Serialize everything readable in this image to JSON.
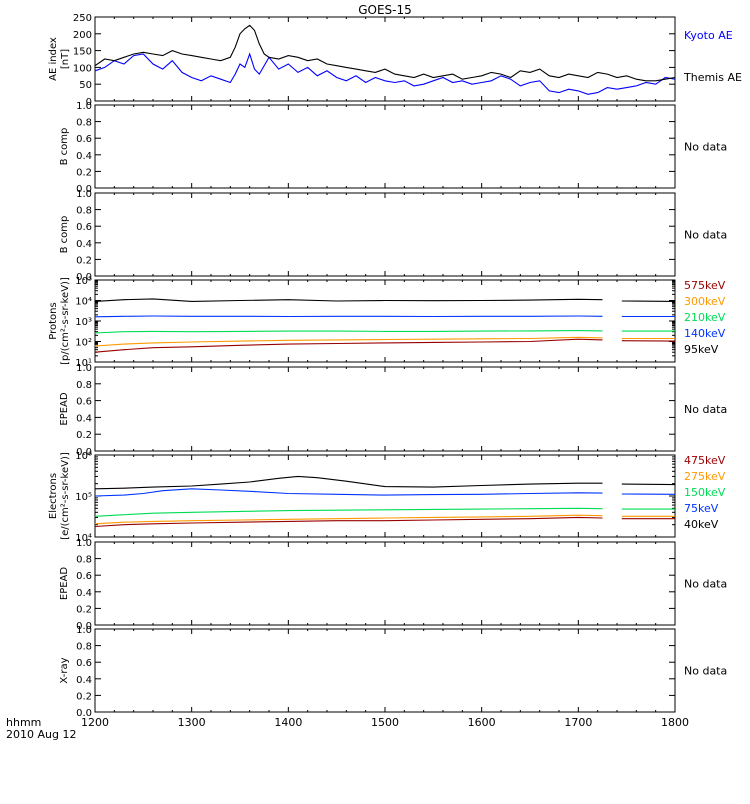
{
  "title": "GOES-15",
  "footer": {
    "line1": "hhmm",
    "line2": "2010 Aug 12"
  },
  "x_axis": {
    "ticks": [
      1200,
      1300,
      1400,
      1500,
      1600,
      1700,
      1800
    ],
    "range": [
      1200,
      1800
    ]
  },
  "no_data_text": "No data",
  "chart_data": [
    {
      "id": "ae",
      "type": "line",
      "ylabel": [
        "AE index",
        "[nT]"
      ],
      "ylim": [
        0,
        250
      ],
      "yticks": [
        0,
        50,
        100,
        150,
        200,
        250
      ],
      "series": [
        {
          "name": "Kyoto AE",
          "color": "#0000ff",
          "x": [
            1200,
            1210,
            1220,
            1230,
            1240,
            1250,
            1260,
            1270,
            1280,
            1290,
            1300,
            1310,
            1320,
            1330,
            1340,
            1345,
            1350,
            1355,
            1360,
            1365,
            1370,
            1380,
            1390,
            1400,
            1410,
            1420,
            1430,
            1440,
            1450,
            1460,
            1470,
            1480,
            1490,
            1500,
            1510,
            1520,
            1530,
            1540,
            1550,
            1560,
            1570,
            1580,
            1590,
            1600,
            1610,
            1620,
            1630,
            1640,
            1650,
            1660,
            1670,
            1680,
            1690,
            1700,
            1710,
            1720,
            1730,
            1740,
            1750,
            1760,
            1770,
            1780,
            1790,
            1800
          ],
          "y": [
            90,
            100,
            120,
            110,
            135,
            140,
            110,
            95,
            120,
            85,
            70,
            60,
            75,
            65,
            55,
            80,
            110,
            100,
            140,
            95,
            80,
            130,
            95,
            110,
            85,
            100,
            75,
            90,
            70,
            60,
            75,
            55,
            70,
            60,
            55,
            60,
            45,
            50,
            60,
            70,
            55,
            60,
            50,
            55,
            60,
            75,
            65,
            45,
            55,
            60,
            30,
            25,
            35,
            30,
            20,
            25,
            40,
            35,
            40,
            45,
            55,
            50,
            70,
            65
          ]
        },
        {
          "name": "Themis AE",
          "color": "#000000",
          "x": [
            1200,
            1210,
            1220,
            1230,
            1240,
            1250,
            1260,
            1270,
            1280,
            1290,
            1300,
            1310,
            1320,
            1330,
            1340,
            1345,
            1350,
            1355,
            1360,
            1365,
            1370,
            1375,
            1380,
            1390,
            1400,
            1410,
            1420,
            1430,
            1440,
            1450,
            1460,
            1470,
            1480,
            1490,
            1500,
            1510,
            1520,
            1530,
            1540,
            1550,
            1560,
            1570,
            1580,
            1590,
            1600,
            1610,
            1620,
            1630,
            1640,
            1650,
            1660,
            1670,
            1680,
            1690,
            1700,
            1710,
            1720,
            1730,
            1740,
            1750,
            1760,
            1770,
            1780,
            1790,
            1800
          ],
          "y": [
            105,
            125,
            120,
            130,
            140,
            145,
            140,
            135,
            150,
            140,
            135,
            130,
            125,
            120,
            130,
            160,
            200,
            215,
            225,
            210,
            170,
            140,
            130,
            125,
            135,
            130,
            120,
            125,
            110,
            105,
            100,
            95,
            90,
            85,
            95,
            80,
            75,
            70,
            80,
            70,
            75,
            80,
            65,
            70,
            75,
            85,
            80,
            70,
            90,
            85,
            95,
            75,
            70,
            80,
            75,
            70,
            85,
            80,
            70,
            75,
            65,
            60,
            60,
            65,
            70
          ]
        }
      ]
    },
    {
      "id": "bcomp1",
      "type": "line",
      "ylabel": [
        "B comp"
      ],
      "ylim": [
        0,
        1
      ],
      "yticks": [
        0.0,
        0.2,
        0.4,
        0.6,
        0.8,
        1.0
      ],
      "yticklabels": [
        "0.0",
        "0.2",
        "0.4",
        "0.6",
        "0.8",
        "1.0"
      ],
      "series": []
    },
    {
      "id": "bcomp2",
      "type": "line",
      "ylabel": [
        "B comp"
      ],
      "ylim": [
        0,
        1
      ],
      "yticks": [
        0.0,
        0.2,
        0.4,
        0.6,
        0.8,
        1.0
      ],
      "yticklabels": [
        "0.0",
        "0.2",
        "0.4",
        "0.6",
        "0.8",
        "1.0"
      ],
      "series": []
    },
    {
      "id": "protons",
      "type": "line",
      "ylabel": [
        "Protons",
        "[p/(cm²-s-sr-keV)]"
      ],
      "yscale": "log",
      "ylim": [
        10,
        100000
      ],
      "yticks": [
        10,
        100,
        1000,
        10000,
        100000
      ],
      "yticklabels": [
        "10¹",
        "10²",
        "10³",
        "10⁴",
        "10⁵"
      ],
      "gap": [
        1725,
        1745
      ],
      "series": [
        {
          "name": "575keV",
          "color": "#990000",
          "x": [
            1200,
            1230,
            1260,
            1300,
            1350,
            1400,
            1450,
            1500,
            1550,
            1600,
            1650,
            1700,
            1725,
            1745,
            1800
          ],
          "y": [
            30,
            40,
            50,
            55,
            65,
            75,
            80,
            85,
            90,
            95,
            100,
            130,
            120,
            110,
            105
          ]
        },
        {
          "name": "300keV",
          "color": "#ff9900",
          "x": [
            1200,
            1230,
            1260,
            1300,
            1350,
            1400,
            1450,
            1500,
            1550,
            1600,
            1650,
            1700,
            1725,
            1745,
            1800
          ],
          "y": [
            60,
            75,
            85,
            95,
            105,
            115,
            120,
            125,
            130,
            135,
            140,
            160,
            150,
            140,
            140
          ]
        },
        {
          "name": "210keV",
          "color": "#00dd55",
          "x": [
            1200,
            1230,
            1260,
            1300,
            1350,
            1400,
            1450,
            1500,
            1550,
            1600,
            1650,
            1700,
            1725,
            1745,
            1800
          ],
          "y": [
            260,
            300,
            310,
            300,
            310,
            320,
            320,
            310,
            310,
            320,
            330,
            340,
            330,
            320,
            320
          ]
        },
        {
          "name": "140keV",
          "color": "#0033ff",
          "x": [
            1200,
            1230,
            1260,
            1300,
            1350,
            1400,
            1450,
            1500,
            1550,
            1600,
            1650,
            1700,
            1725,
            1745,
            1800
          ],
          "y": [
            1600,
            1700,
            1750,
            1700,
            1700,
            1650,
            1700,
            1700,
            1650,
            1700,
            1700,
            1750,
            1700,
            1650,
            1650
          ]
        },
        {
          "name": "95keV",
          "color": "#000000",
          "x": [
            1200,
            1230,
            1260,
            1300,
            1350,
            1400,
            1450,
            1500,
            1550,
            1600,
            1650,
            1700,
            1725,
            1745,
            1800
          ],
          "y": [
            9000,
            11000,
            12000,
            9000,
            10000,
            11000,
            9500,
            10000,
            9800,
            10000,
            10500,
            11500,
            11000,
            9500,
            9000
          ]
        }
      ]
    },
    {
      "id": "epead1",
      "type": "line",
      "ylabel": [
        "EPEAD"
      ],
      "ylim": [
        0,
        1
      ],
      "yticks": [
        0.0,
        0.2,
        0.4,
        0.6,
        0.8,
        1.0
      ],
      "yticklabels": [
        "0.0",
        "0.2",
        "0.4",
        "0.6",
        "0.8",
        "1.0"
      ],
      "series": []
    },
    {
      "id": "electrons",
      "type": "line",
      "ylabel": [
        "Electrons",
        "[e/(cm²-s-sr-keV)]"
      ],
      "yscale": "log",
      "ylim": [
        10000,
        1000000
      ],
      "yticks": [
        10000,
        100000,
        1000000
      ],
      "yticklabels": [
        "10⁴",
        "10⁵",
        "10⁶"
      ],
      "gap": [
        1725,
        1745
      ],
      "series": [
        {
          "name": "475keV",
          "color": "#990000",
          "x": [
            1200,
            1230,
            1260,
            1300,
            1350,
            1400,
            1450,
            1500,
            1550,
            1600,
            1650,
            1700,
            1725,
            1745,
            1800
          ],
          "y": [
            18000,
            20000,
            21000,
            22000,
            23000,
            24000,
            25000,
            25000,
            26000,
            27000,
            28000,
            30000,
            29000,
            28000,
            28000
          ]
        },
        {
          "name": "275keV",
          "color": "#ff9900",
          "x": [
            1200,
            1230,
            1260,
            1300,
            1350,
            1400,
            1450,
            1500,
            1550,
            1600,
            1650,
            1700,
            1725,
            1745,
            1800
          ],
          "y": [
            21000,
            23000,
            24000,
            25000,
            26000,
            27000,
            28000,
            29000,
            30000,
            31000,
            32000,
            34000,
            33000,
            32000,
            32000
          ]
        },
        {
          "name": "150keV",
          "color": "#00dd55",
          "x": [
            1200,
            1230,
            1260,
            1300,
            1350,
            1400,
            1450,
            1500,
            1550,
            1600,
            1650,
            1700,
            1725,
            1745,
            1800
          ],
          "y": [
            32000,
            35000,
            38000,
            40000,
            42000,
            44000,
            45000,
            46000,
            47000,
            48000,
            49000,
            50000,
            49000,
            48000,
            48000
          ]
        },
        {
          "name": "75keV",
          "color": "#0033ff",
          "x": [
            1200,
            1230,
            1250,
            1270,
            1300,
            1330,
            1360,
            1400,
            1450,
            1500,
            1550,
            1600,
            1650,
            1700,
            1725,
            1745,
            1800
          ],
          "y": [
            100000,
            105000,
            115000,
            135000,
            150000,
            140000,
            130000,
            115000,
            110000,
            105000,
            108000,
            110000,
            115000,
            120000,
            118000,
            112000,
            110000
          ]
        },
        {
          "name": "40keV",
          "color": "#000000",
          "x": [
            1200,
            1230,
            1260,
            1300,
            1330,
            1360,
            1390,
            1410,
            1430,
            1460,
            1500,
            1550,
            1600,
            1650,
            1700,
            1725,
            1745,
            1800
          ],
          "y": [
            150000,
            155000,
            165000,
            175000,
            195000,
            220000,
            270000,
            300000,
            280000,
            230000,
            170000,
            165000,
            180000,
            195000,
            205000,
            205000,
            195000,
            190000
          ]
        }
      ]
    },
    {
      "id": "epead2",
      "type": "line",
      "ylabel": [
        "EPEAD"
      ],
      "ylim": [
        0,
        1
      ],
      "yticks": [
        0.0,
        0.2,
        0.4,
        0.6,
        0.8,
        1.0
      ],
      "yticklabels": [
        "0.0",
        "0.2",
        "0.4",
        "0.6",
        "0.8",
        "1.0"
      ],
      "series": []
    },
    {
      "id": "xray",
      "type": "line",
      "ylabel": [
        "X-ray"
      ],
      "ylim": [
        0,
        1
      ],
      "yticks": [
        0.0,
        0.2,
        0.4,
        0.6,
        0.8,
        1.0
      ],
      "yticklabels": [
        "0.0",
        "0.2",
        "0.4",
        "0.6",
        "0.8",
        "1.0"
      ],
      "series": []
    }
  ]
}
